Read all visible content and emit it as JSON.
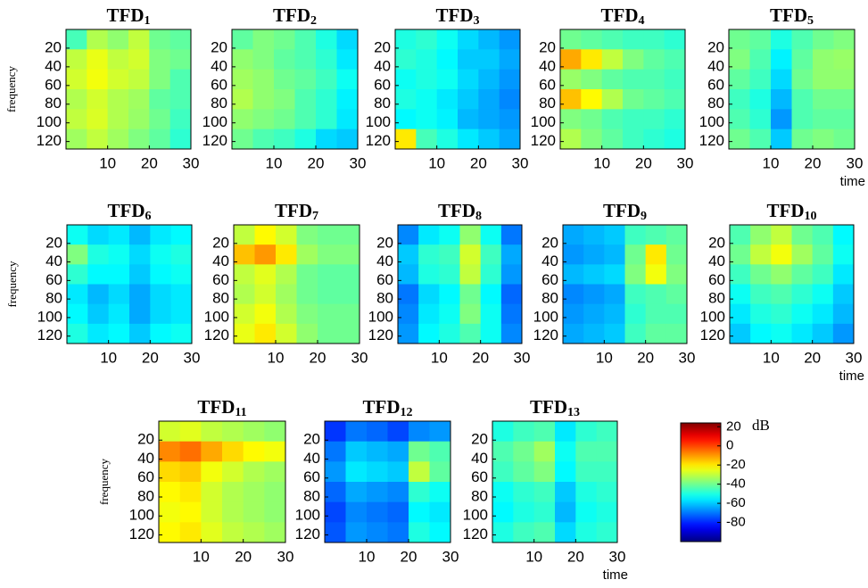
{
  "chart_data": [
    {
      "type": "heatmap",
      "title": "TFD",
      "subscript": "1",
      "ylabel": "frequency",
      "xlim": [
        0,
        30
      ],
      "xticks": [
        10,
        20,
        30
      ],
      "ylim": [
        0,
        128
      ],
      "yticks": [
        20,
        40,
        60,
        80,
        100,
        120
      ],
      "y_reversed": true,
      "values": [
        [
          -45,
          -32,
          -36,
          -30,
          -40,
          -42
        ],
        [
          -30,
          -25,
          -30,
          -28,
          -38,
          -40
        ],
        [
          -28,
          -24,
          -28,
          -30,
          -38,
          -44
        ],
        [
          -32,
          -28,
          -32,
          -34,
          -42,
          -44
        ],
        [
          -30,
          -27,
          -32,
          -35,
          -40,
          -46
        ],
        [
          -34,
          -30,
          -34,
          -38,
          -42,
          -48
        ]
      ]
    },
    {
      "type": "heatmap",
      "title": "TFD",
      "subscript": "2",
      "xlim": [
        0,
        30
      ],
      "xticks": [
        10,
        20,
        30
      ],
      "ylim": [
        0,
        128
      ],
      "yticks": [
        20,
        40,
        60,
        80,
        100,
        120
      ],
      "y_reversed": true,
      "values": [
        [
          -42,
          -38,
          -40,
          -44,
          -50,
          -58
        ],
        [
          -36,
          -38,
          -42,
          -44,
          -48,
          -56
        ],
        [
          -34,
          -36,
          -40,
          -42,
          -46,
          -52
        ],
        [
          -32,
          -36,
          -38,
          -44,
          -48,
          -55
        ],
        [
          -36,
          -38,
          -40,
          -44,
          -48,
          -56
        ],
        [
          -40,
          -44,
          -46,
          -50,
          -58,
          -60
        ]
      ]
    },
    {
      "type": "heatmap",
      "title": "TFD",
      "subscript": "3",
      "xlim": [
        0,
        30
      ],
      "xticks": [
        10,
        20,
        30
      ],
      "ylim": [
        0,
        128
      ],
      "yticks": [
        20,
        40,
        60,
        80,
        100,
        120
      ],
      "y_reversed": true,
      "values": [
        [
          -50,
          -48,
          -52,
          -58,
          -62,
          -66
        ],
        [
          -48,
          -50,
          -54,
          -60,
          -60,
          -64
        ],
        [
          -52,
          -50,
          -52,
          -58,
          -62,
          -66
        ],
        [
          -50,
          -52,
          -56,
          -60,
          -64,
          -68
        ],
        [
          -54,
          -52,
          -55,
          -62,
          -64,
          -66
        ],
        [
          -20,
          -45,
          -50,
          -56,
          -60,
          -64
        ]
      ]
    },
    {
      "type": "heatmap",
      "title": "TFD",
      "subscript": "4",
      "xlim": [
        0,
        30
      ],
      "xticks": [
        10,
        20,
        30
      ],
      "ylim": [
        0,
        128
      ],
      "yticks": [
        20,
        40,
        60,
        80,
        100,
        120
      ],
      "y_reversed": true,
      "values": [
        [
          -40,
          -42,
          -44,
          -46,
          -46,
          -48
        ],
        [
          -12,
          -20,
          -30,
          -38,
          -42,
          -44
        ],
        [
          -35,
          -38,
          -42,
          -44,
          -44,
          -46
        ],
        [
          -15,
          -22,
          -32,
          -40,
          -42,
          -44
        ],
        [
          -38,
          -40,
          -44,
          -46,
          -46,
          -48
        ],
        [
          -32,
          -38,
          -42,
          -46,
          -48,
          -50
        ]
      ]
    },
    {
      "type": "heatmap",
      "title": "TFD",
      "subscript": "5",
      "xlabel": "time",
      "xlim": [
        0,
        30
      ],
      "xticks": [
        10,
        20,
        30
      ],
      "ylim": [
        0,
        128
      ],
      "yticks": [
        20,
        40,
        60,
        80,
        100,
        120
      ],
      "y_reversed": true,
      "values": [
        [
          -40,
          -42,
          -50,
          -44,
          -40,
          -38
        ],
        [
          -38,
          -44,
          -55,
          -42,
          -36,
          -35
        ],
        [
          -42,
          -46,
          -58,
          -40,
          -36,
          -36
        ],
        [
          -46,
          -50,
          -62,
          -44,
          -40,
          -40
        ],
        [
          -44,
          -48,
          -66,
          -44,
          -42,
          -42
        ],
        [
          -40,
          -44,
          -60,
          -40,
          -38,
          -40
        ]
      ]
    },
    {
      "type": "heatmap",
      "title": "TFD",
      "subscript": "6",
      "ylabel": "frequency",
      "xlim": [
        0,
        30
      ],
      "xticks": [
        10,
        20,
        30
      ],
      "ylim": [
        0,
        128
      ],
      "yticks": [
        20,
        40,
        60,
        80,
        100,
        120
      ],
      "y_reversed": true,
      "values": [
        [
          -52,
          -58,
          -56,
          -62,
          -56,
          -54
        ],
        [
          -38,
          -50,
          -52,
          -58,
          -52,
          -50
        ],
        [
          -48,
          -54,
          -54,
          -60,
          -54,
          -52
        ],
        [
          -56,
          -62,
          -58,
          -64,
          -58,
          -56
        ],
        [
          -54,
          -60,
          -56,
          -64,
          -58,
          -56
        ],
        [
          -50,
          -56,
          -54,
          -60,
          -54,
          -52
        ]
      ]
    },
    {
      "type": "heatmap",
      "title": "TFD",
      "subscript": "7",
      "xlim": [
        0,
        30
      ],
      "xticks": [
        10,
        20,
        30
      ],
      "ylim": [
        0,
        128
      ],
      "yticks": [
        20,
        40,
        60,
        80,
        100,
        120
      ],
      "y_reversed": true,
      "values": [
        [
          -30,
          -22,
          -28,
          -38,
          -40,
          -40
        ],
        [
          -15,
          -10,
          -20,
          -34,
          -38,
          -38
        ],
        [
          -30,
          -26,
          -32,
          -40,
          -42,
          -42
        ],
        [
          -32,
          -28,
          -34,
          -40,
          -42,
          -42
        ],
        [
          -28,
          -24,
          -32,
          -38,
          -40,
          -40
        ],
        [
          -25,
          -20,
          -28,
          -36,
          -40,
          -40
        ]
      ]
    },
    {
      "type": "heatmap",
      "title": "TFD",
      "subscript": "8",
      "xlim": [
        0,
        30
      ],
      "xticks": [
        10,
        20,
        30
      ],
      "ylim": [
        0,
        128
      ],
      "yticks": [
        20,
        40,
        60,
        80,
        100,
        120
      ],
      "y_reversed": true,
      "values": [
        [
          -68,
          -56,
          -52,
          -36,
          -52,
          -70
        ],
        [
          -60,
          -48,
          -46,
          -28,
          -46,
          -64
        ],
        [
          -62,
          -50,
          -48,
          -30,
          -48,
          -66
        ],
        [
          -70,
          -58,
          -54,
          -40,
          -54,
          -72
        ],
        [
          -68,
          -56,
          -52,
          -38,
          -52,
          -70
        ],
        [
          -66,
          -54,
          -50,
          -44,
          -52,
          -68
        ]
      ]
    },
    {
      "type": "heatmap",
      "title": "TFD",
      "subscript": "9",
      "xlim": [
        0,
        30
      ],
      "xticks": [
        10,
        20,
        30
      ],
      "ylim": [
        0,
        128
      ],
      "yticks": [
        20,
        40,
        60,
        80,
        100,
        120
      ],
      "y_reversed": true,
      "values": [
        [
          -64,
          -62,
          -60,
          -46,
          -44,
          -42
        ],
        [
          -66,
          -64,
          -62,
          -40,
          -20,
          -40
        ],
        [
          -62,
          -60,
          -58,
          -38,
          -24,
          -38
        ],
        [
          -68,
          -66,
          -64,
          -46,
          -44,
          -42
        ],
        [
          -66,
          -64,
          -62,
          -48,
          -44,
          -44
        ],
        [
          -64,
          -62,
          -60,
          -46,
          -42,
          -42
        ]
      ]
    },
    {
      "type": "heatmap",
      "title": "TFD",
      "subscript": "10",
      "xlabel": "time",
      "xlim": [
        0,
        30
      ],
      "xticks": [
        10,
        20,
        30
      ],
      "ylim": [
        0,
        128
      ],
      "yticks": [
        20,
        40,
        60,
        80,
        100,
        120
      ],
      "y_reversed": true,
      "values": [
        [
          -44,
          -36,
          -30,
          -40,
          -44,
          -54
        ],
        [
          -40,
          -30,
          -24,
          -34,
          -42,
          -52
        ],
        [
          -46,
          -40,
          -36,
          -42,
          -46,
          -56
        ],
        [
          -52,
          -46,
          -44,
          -48,
          -52,
          -60
        ],
        [
          -56,
          -50,
          -48,
          -52,
          -56,
          -62
        ],
        [
          -60,
          -54,
          -52,
          -56,
          -60,
          -66
        ]
      ]
    },
    {
      "type": "heatmap",
      "title": "TFD",
      "subscript": "11",
      "ylabel": "frequency",
      "xlim": [
        0,
        30
      ],
      "xticks": [
        10,
        20,
        30
      ],
      "ylim": [
        0,
        128
      ],
      "yticks": [
        20,
        40,
        60,
        80,
        100,
        120
      ],
      "y_reversed": true,
      "values": [
        [
          -28,
          -26,
          -30,
          -32,
          -34,
          -36
        ],
        [
          -8,
          -5,
          -12,
          -18,
          -22,
          -24
        ],
        [
          -18,
          -16,
          -24,
          -28,
          -32,
          -34
        ],
        [
          -22,
          -20,
          -28,
          -32,
          -34,
          -36
        ],
        [
          -24,
          -22,
          -28,
          -32,
          -34,
          -36
        ],
        [
          -22,
          -20,
          -26,
          -30,
          -32,
          -34
        ]
      ]
    },
    {
      "type": "heatmap",
      "title": "TFD",
      "subscript": "12",
      "xlim": [
        0,
        30
      ],
      "xticks": [
        10,
        20,
        30
      ],
      "ylim": [
        0,
        128
      ],
      "yticks": [
        20,
        40,
        60,
        80,
        100,
        120
      ],
      "y_reversed": true,
      "values": [
        [
          -78,
          -70,
          -72,
          -76,
          -68,
          -66
        ],
        [
          -70,
          -60,
          -62,
          -64,
          -40,
          -44
        ],
        [
          -66,
          -56,
          -58,
          -60,
          -30,
          -42
        ],
        [
          -72,
          -64,
          -66,
          -68,
          -48,
          -52
        ],
        [
          -76,
          -68,
          -70,
          -72,
          -54,
          -56
        ],
        [
          -74,
          -66,
          -68,
          -70,
          -50,
          -54
        ]
      ]
    },
    {
      "type": "heatmap",
      "title": "TFD",
      "subscript": "13",
      "xlabel": "time",
      "xlim": [
        0,
        30
      ],
      "xticks": [
        10,
        20,
        30
      ],
      "ylim": [
        0,
        128
      ],
      "yticks": [
        20,
        40,
        60,
        80,
        100,
        120
      ],
      "y_reversed": true,
      "values": [
        [
          -50,
          -46,
          -44,
          -56,
          -48,
          -46
        ],
        [
          -44,
          -40,
          -34,
          -52,
          -44,
          -44
        ],
        [
          -46,
          -42,
          -38,
          -54,
          -46,
          -46
        ],
        [
          -52,
          -48,
          -46,
          -60,
          -50,
          -48
        ],
        [
          -54,
          -50,
          -48,
          -62,
          -52,
          -50
        ],
        [
          -50,
          -46,
          -44,
          -58,
          -50,
          -48
        ]
      ]
    }
  ],
  "colorbar": {
    "label": "dB",
    "colormap": "jet",
    "clim": [
      -100,
      24
    ],
    "ticks": [
      20,
      0,
      -20,
      -40,
      -60,
      -80
    ]
  }
}
